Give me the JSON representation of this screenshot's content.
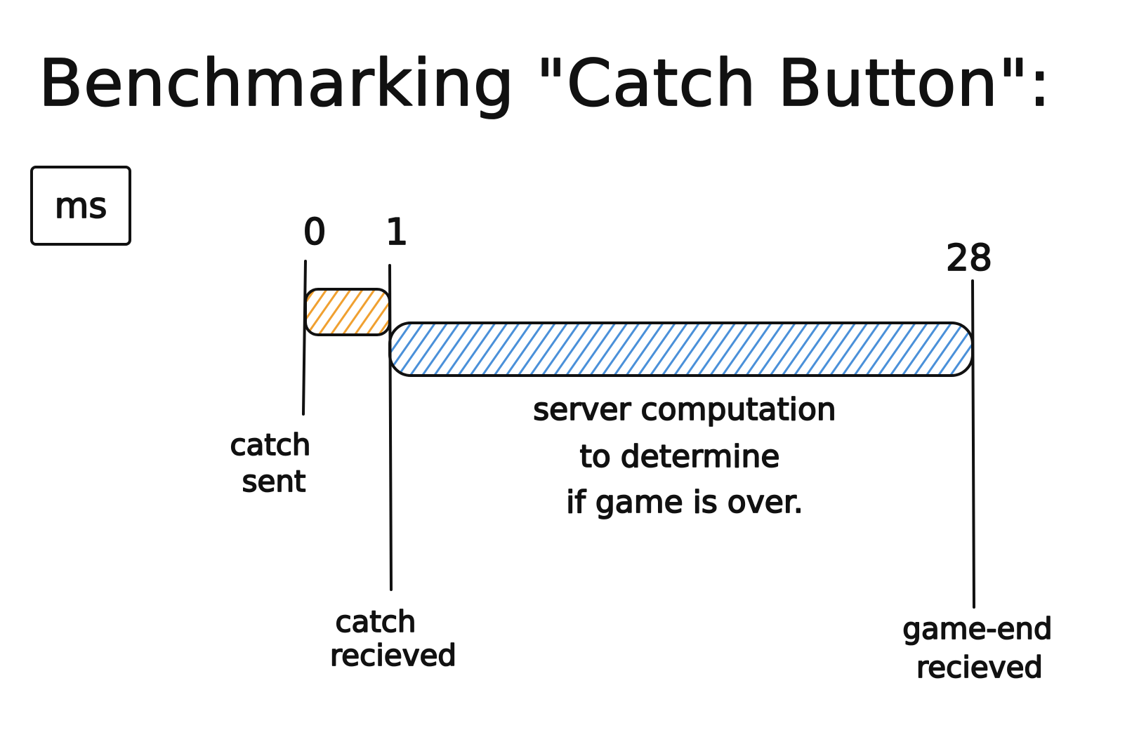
{
  "title": "Benchmarking \"Catch Button\":",
  "unit": "ms",
  "timeline": {
    "ticks": [
      {
        "value": 0,
        "label": "0"
      },
      {
        "value": 1,
        "label": "1"
      },
      {
        "value": 28,
        "label": "28"
      }
    ],
    "events": [
      {
        "lines": [
          "catch",
          "sent"
        ]
      },
      {
        "lines": [
          "catch",
          "recieved"
        ]
      },
      {
        "lines": [
          "game-end",
          "recieved"
        ]
      }
    ],
    "segments": [
      {
        "start": 0,
        "end": 1,
        "color": "#f0a030"
      },
      {
        "start": 1,
        "end": 28,
        "color": "#4a90d9",
        "description": [
          "server computation",
          "to determine",
          "if game is over."
        ]
      }
    ]
  }
}
